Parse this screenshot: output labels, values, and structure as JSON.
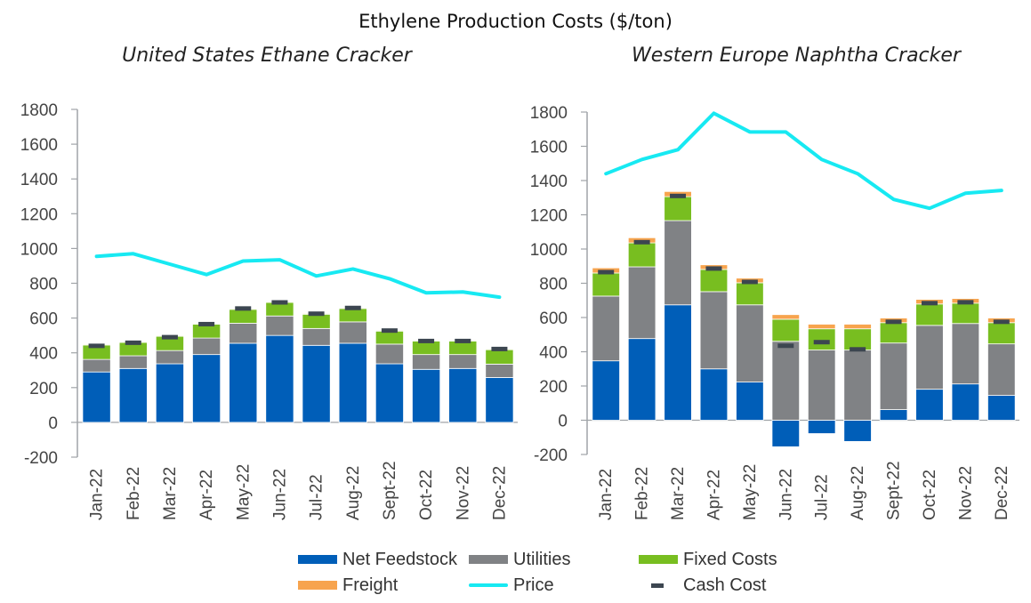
{
  "title": "Ethylene Production Costs ($/ton)",
  "colors": {
    "net_feedstock": "#005EB8",
    "utilities": "#808285",
    "fixed_costs": "#78BE20",
    "freight": "#F7A44E",
    "freight_us": "#EFE7B0",
    "price": "#17E9F2",
    "cash_cost": "#3C4650",
    "axis": "#A0A4A8",
    "separator": "#DCEBF7"
  },
  "legend": [
    {
      "key": "net_feedstock",
      "label": "Net Feedstock",
      "kind": "bar"
    },
    {
      "key": "utilities",
      "label": "Utilities",
      "kind": "bar"
    },
    {
      "key": "fixed_costs",
      "label": "Fixed Costs",
      "kind": "bar"
    },
    {
      "key": "freight",
      "label": "Freight",
      "kind": "bar"
    },
    {
      "key": "price",
      "label": "Price",
      "kind": "line"
    },
    {
      "key": "cash_cost",
      "label": "Cash Cost",
      "kind": "marker"
    }
  ],
  "chart_data": [
    {
      "type": "bar",
      "stacked": true,
      "title": "United States Ethane Cracker",
      "xlabel": "",
      "ylabel": "$/ton",
      "ylim": [
        -200,
        1800
      ],
      "yticks": [
        -200,
        0,
        200,
        400,
        600,
        800,
        1000,
        1200,
        1400,
        1600,
        1800
      ],
      "grid": false,
      "legend_position": "bottom",
      "categories": [
        "Jan-22",
        "Feb-22",
        "Mar-22",
        "Apr-22",
        "May-22",
        "Jun-22",
        "Jul-22",
        "Aug-22",
        "Sept-22",
        "Oct-22",
        "Nov-22",
        "Dec-22"
      ],
      "series": [
        {
          "name": "Net Feedstock",
          "key": "net_feedstock",
          "kind": "bar",
          "values": [
            290,
            310,
            337,
            390,
            455,
            500,
            443,
            455,
            337,
            305,
            310,
            258
          ]
        },
        {
          "name": "Utilities",
          "key": "utilities",
          "kind": "bar",
          "values": [
            72,
            73,
            76,
            95,
            115,
            112,
            97,
            123,
            113,
            85,
            80,
            77
          ]
        },
        {
          "name": "Fixed Costs",
          "key": "fixed_costs",
          "kind": "bar",
          "values": [
            83,
            77,
            82,
            80,
            80,
            78,
            82,
            77,
            75,
            78,
            78,
            83
          ]
        },
        {
          "name": "Freight",
          "key": "freight",
          "kind": "bar",
          "values": [
            5,
            5,
            5,
            5,
            5,
            5,
            5,
            5,
            5,
            5,
            5,
            5
          ]
        },
        {
          "name": "Price",
          "key": "price",
          "kind": "line",
          "values": [
            955,
            970,
            910,
            850,
            928,
            935,
            842,
            882,
            826,
            745,
            750,
            720
          ]
        },
        {
          "name": "Cash Cost",
          "key": "cash_cost",
          "kind": "marker",
          "values": [
            440,
            458,
            490,
            565,
            655,
            690,
            625,
            658,
            528,
            468,
            468,
            422
          ]
        }
      ]
    },
    {
      "type": "bar",
      "stacked": true,
      "title": "Western Europe Naphtha Cracker",
      "xlabel": "",
      "ylabel": "$/ton",
      "ylim": [
        -200,
        1800
      ],
      "yticks": [
        -200,
        0,
        200,
        400,
        600,
        800,
        1000,
        1200,
        1400,
        1600,
        1800
      ],
      "grid": false,
      "legend_position": "bottom",
      "categories": [
        "Jan-22",
        "Feb-22",
        "Mar-22",
        "Apr-22",
        "May-22",
        "Jun-22",
        "Jul-22",
        "Aug-22",
        "Sept-22",
        "Oct-22",
        "Nov-22",
        "Dec-22"
      ],
      "series": [
        {
          "name": "Net Feedstock",
          "key": "net_feedstock",
          "kind": "bar",
          "values": [
            347,
            477,
            674,
            300,
            223,
            -155,
            -78,
            -124,
            62,
            181,
            212,
            145
          ]
        },
        {
          "name": "Utilities",
          "key": "utilities",
          "kind": "bar",
          "values": [
            378,
            419,
            492,
            451,
            451,
            461,
            410,
            410,
            389,
            373,
            353,
            301
          ]
        },
        {
          "name": "Fixed Costs",
          "key": "fixed_costs",
          "kind": "bar",
          "values": [
            135,
            140,
            140,
            130,
            129,
            129,
            124,
            124,
            119,
            125,
            119,
            124
          ]
        },
        {
          "name": "Freight",
          "key": "freight",
          "kind": "bar",
          "values": [
            30,
            30,
            30,
            27,
            27,
            27,
            27,
            27,
            27,
            27,
            27,
            27
          ]
        },
        {
          "name": "Price",
          "key": "price",
          "kind": "line",
          "values": [
            1440,
            1523,
            1580,
            1793,
            1684,
            1684,
            1523,
            1440,
            1290,
            1238,
            1326,
            1342
          ]
        },
        {
          "name": "Cash Cost",
          "key": "cash_cost",
          "kind": "marker",
          "values": [
            865,
            1040,
            1310,
            886,
            808,
            435,
            456,
            414,
            575,
            684,
            689,
            575
          ]
        }
      ]
    }
  ]
}
